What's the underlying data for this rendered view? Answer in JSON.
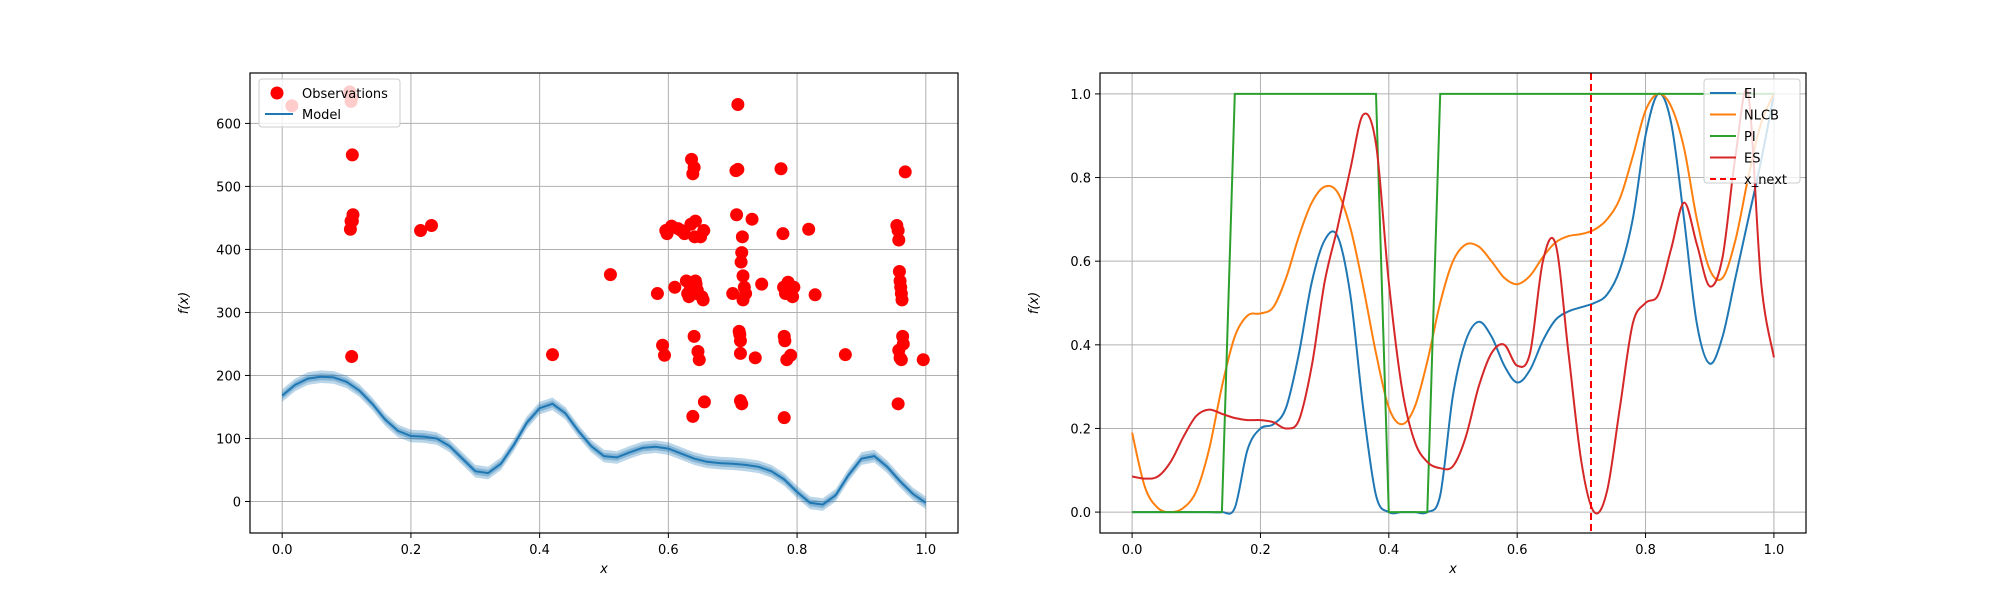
{
  "chart_data": [
    {
      "type": "scatter",
      "title": "",
      "xlabel": "x",
      "ylabel": "f(x)",
      "xlim": [
        -0.05,
        1.05
      ],
      "ylim": [
        -50,
        680
      ],
      "xticks": [
        0.0,
        0.2,
        0.4,
        0.6,
        0.8,
        1.0
      ],
      "xtick_labels": [
        "0.0",
        "0.2",
        "0.4",
        "0.6",
        "0.8",
        "1.0"
      ],
      "yticks": [
        0,
        100,
        200,
        300,
        400,
        500,
        600
      ],
      "ytick_labels": [
        "0",
        "100",
        "200",
        "300",
        "400",
        "500",
        "600"
      ],
      "grid": true,
      "legend_position": "top-left",
      "legend": [
        "Observations",
        "Model"
      ],
      "colors": {
        "observations": "#ff0000",
        "model": "#1f77b4",
        "band": "#1f77b4"
      },
      "observations": {
        "x": [
          0.015,
          0.105,
          0.107,
          0.108,
          0.109,
          0.11,
          0.107,
          0.106,
          0.108,
          0.109,
          0.215,
          0.232,
          0.42,
          0.51,
          0.583,
          0.591,
          0.594,
          0.596,
          0.598,
          0.605,
          0.61,
          0.615,
          0.62,
          0.625,
          0.628,
          0.63,
          0.632,
          0.633,
          0.635,
          0.636,
          0.638,
          0.64,
          0.641,
          0.642,
          0.643,
          0.644,
          0.645,
          0.646,
          0.648,
          0.65,
          0.652,
          0.654,
          0.656,
          0.638,
          0.64,
          0.642,
          0.655,
          0.7,
          0.705,
          0.706,
          0.708,
          0.71,
          0.711,
          0.712,
          0.713,
          0.714,
          0.715,
          0.716,
          0.718,
          0.72,
          0.708,
          0.712,
          0.714,
          0.712,
          0.716,
          0.73,
          0.735,
          0.745,
          0.775,
          0.778,
          0.779,
          0.78,
          0.781,
          0.782,
          0.784,
          0.786,
          0.79,
          0.793,
          0.795,
          0.78,
          0.818,
          0.828,
          0.875,
          0.955,
          0.957,
          0.958,
          0.959,
          0.96,
          0.961,
          0.962,
          0.963,
          0.964,
          0.965,
          0.958,
          0.96,
          0.962,
          0.957,
          0.968,
          0.996
        ],
        "y": [
          628,
          650,
          635,
          640,
          550,
          455,
          445,
          432,
          230,
          445,
          430,
          438,
          233,
          360,
          330,
          248,
          232,
          430,
          425,
          437,
          340,
          433,
          430,
          425,
          350,
          330,
          325,
          345,
          440,
          543,
          520,
          530,
          420,
          350,
          345,
          330,
          335,
          238,
          225,
          420,
          325,
          320,
          158,
          135,
          262,
          445,
          430,
          330,
          525,
          455,
          630,
          270,
          265,
          235,
          380,
          395,
          420,
          358,
          340,
          330,
          527,
          255,
          155,
          160,
          320,
          448,
          228,
          345,
          528,
          425,
          340,
          262,
          255,
          330,
          225,
          348,
          232,
          325,
          340,
          133,
          432,
          328,
          233,
          438,
          430,
          415,
          365,
          350,
          340,
          330,
          320,
          262,
          250,
          240,
          228,
          225,
          155,
          523,
          225
        ]
      },
      "model": {
        "x": [
          0.0,
          0.02,
          0.04,
          0.06,
          0.08,
          0.1,
          0.12,
          0.14,
          0.16,
          0.18,
          0.2,
          0.22,
          0.24,
          0.26,
          0.28,
          0.3,
          0.32,
          0.34,
          0.36,
          0.38,
          0.4,
          0.42,
          0.44,
          0.46,
          0.48,
          0.5,
          0.52,
          0.54,
          0.56,
          0.58,
          0.6,
          0.62,
          0.64,
          0.66,
          0.68,
          0.7,
          0.72,
          0.74,
          0.76,
          0.78,
          0.8,
          0.82,
          0.84,
          0.86,
          0.88,
          0.9,
          0.92,
          0.94,
          0.96,
          0.98,
          1.0
        ],
        "y": [
          168,
          185,
          195,
          198,
          197,
          190,
          176,
          155,
          130,
          112,
          104,
          103,
          100,
          88,
          68,
          48,
          45,
          60,
          90,
          125,
          148,
          155,
          140,
          112,
          88,
          72,
          70,
          78,
          85,
          87,
          84,
          76,
          68,
          63,
          61,
          60,
          58,
          55,
          48,
          35,
          15,
          -2,
          -5,
          10,
          42,
          68,
          72,
          55,
          32,
          12,
          -2
        ],
        "band": 10
      }
    },
    {
      "type": "line",
      "title": "",
      "xlabel": "x",
      "ylabel": "f(x)",
      "xlim": [
        -0.05,
        1.05
      ],
      "ylim": [
        -0.05,
        1.05
      ],
      "xticks": [
        0.0,
        0.2,
        0.4,
        0.6,
        0.8,
        1.0
      ],
      "xtick_labels": [
        "0.0",
        "0.2",
        "0.4",
        "0.6",
        "0.8",
        "1.0"
      ],
      "yticks": [
        0.0,
        0.2,
        0.4,
        0.6,
        0.8,
        1.0
      ],
      "ytick_labels": [
        "0.0",
        "0.2",
        "0.4",
        "0.6",
        "0.8",
        "1.0"
      ],
      "grid": true,
      "legend_position": "top-right",
      "x": [
        0.0,
        0.02,
        0.04,
        0.06,
        0.08,
        0.1,
        0.12,
        0.14,
        0.16,
        0.18,
        0.2,
        0.22,
        0.24,
        0.26,
        0.28,
        0.3,
        0.32,
        0.34,
        0.36,
        0.38,
        0.4,
        0.42,
        0.44,
        0.46,
        0.48,
        0.5,
        0.52,
        0.54,
        0.56,
        0.58,
        0.6,
        0.62,
        0.64,
        0.66,
        0.68,
        0.7,
        0.72,
        0.74,
        0.76,
        0.78,
        0.8,
        0.82,
        0.84,
        0.86,
        0.88,
        0.9,
        0.92,
        0.94,
        0.96,
        0.98,
        1.0
      ],
      "series": [
        {
          "name": "EI",
          "color": "#1f77b4",
          "dashed": false,
          "values": [
            0.0,
            0.0,
            0.0,
            0.0,
            0.0,
            0.0,
            0.0,
            0.0,
            0.01,
            0.15,
            0.2,
            0.21,
            0.25,
            0.38,
            0.55,
            0.65,
            0.66,
            0.52,
            0.25,
            0.04,
            0.0,
            0.0,
            0.0,
            0.0,
            0.04,
            0.28,
            0.41,
            0.455,
            0.42,
            0.35,
            0.31,
            0.34,
            0.41,
            0.46,
            0.48,
            0.49,
            0.5,
            0.52,
            0.58,
            0.7,
            0.9,
            1.0,
            0.93,
            0.7,
            0.45,
            0.355,
            0.42,
            0.56,
            0.7,
            0.84,
            1.0
          ]
        },
        {
          "name": "NLCB",
          "color": "#ff7f0e",
          "dashed": false,
          "values": [
            0.19,
            0.06,
            0.01,
            0.0,
            0.01,
            0.05,
            0.15,
            0.3,
            0.42,
            0.47,
            0.475,
            0.49,
            0.56,
            0.66,
            0.74,
            0.778,
            0.765,
            0.68,
            0.54,
            0.38,
            0.25,
            0.21,
            0.25,
            0.36,
            0.5,
            0.6,
            0.64,
            0.635,
            0.6,
            0.56,
            0.545,
            0.565,
            0.61,
            0.645,
            0.66,
            0.665,
            0.675,
            0.7,
            0.75,
            0.85,
            0.96,
            1.0,
            0.97,
            0.87,
            0.7,
            0.58,
            0.56,
            0.65,
            0.8,
            0.93,
            1.0
          ]
        },
        {
          "name": "PI",
          "color": "#2ca02c",
          "dashed": false,
          "values": [
            0.0,
            0.0,
            0.0,
            0.0,
            0.0,
            0.0,
            0.0,
            0.0,
            1.0,
            1.0,
            1.0,
            1.0,
            1.0,
            1.0,
            1.0,
            1.0,
            1.0,
            1.0,
            1.0,
            1.0,
            0.0,
            0.0,
            0.0,
            0.0,
            1.0,
            1.0,
            1.0,
            1.0,
            1.0,
            1.0,
            1.0,
            1.0,
            1.0,
            1.0,
            1.0,
            1.0,
            1.0,
            1.0,
            1.0,
            1.0,
            1.0,
            1.0,
            1.0,
            1.0,
            1.0,
            1.0,
            1.0,
            1.0,
            1.0,
            1.0,
            1.0
          ]
        },
        {
          "name": "ES",
          "color": "#d62728",
          "dashed": false,
          "values": [
            0.085,
            0.08,
            0.085,
            0.12,
            0.18,
            0.23,
            0.245,
            0.235,
            0.225,
            0.22,
            0.22,
            0.215,
            0.2,
            0.22,
            0.35,
            0.55,
            0.68,
            0.82,
            0.95,
            0.88,
            0.55,
            0.3,
            0.17,
            0.12,
            0.105,
            0.11,
            0.18,
            0.3,
            0.38,
            0.4,
            0.35,
            0.38,
            0.6,
            0.64,
            0.38,
            0.12,
            0.0,
            0.05,
            0.25,
            0.45,
            0.5,
            0.52,
            0.63,
            0.74,
            0.64,
            0.54,
            0.61,
            0.85,
            1.0,
            0.55,
            0.37
          ]
        },
        {
          "name": "x_next",
          "color": "#ff0000",
          "dashed": true,
          "vline_x": 0.715
        }
      ]
    }
  ]
}
